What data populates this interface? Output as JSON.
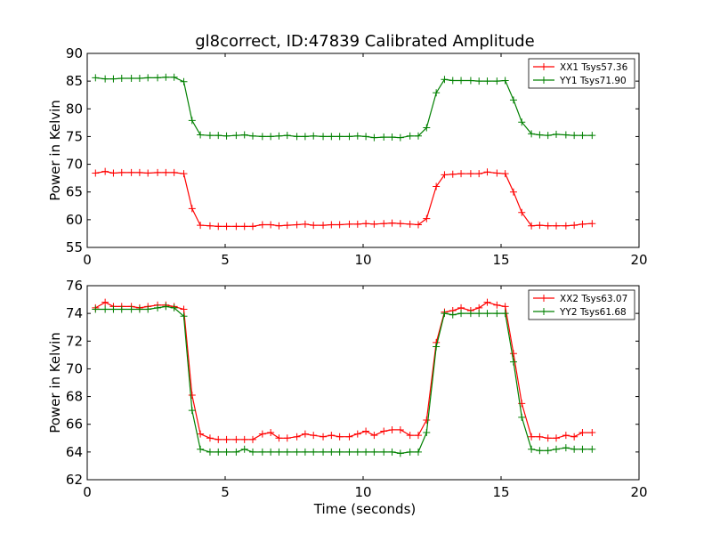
{
  "title": "gl8correct, ID:47839 Calibrated Amplitude",
  "chart_data": [
    {
      "type": "line",
      "title": "gl8correct, ID:47839 Calibrated Amplitude",
      "xlabel": "",
      "ylabel": "Power in Kelvin",
      "xlim": [
        0,
        20
      ],
      "ylim": [
        55,
        90
      ],
      "xticks": [
        "0",
        "5",
        "10",
        "15",
        "20"
      ],
      "yticks": [
        "55",
        "60",
        "65",
        "70",
        "75",
        "80",
        "85",
        "90"
      ],
      "grid": false,
      "legend_position": "top-right",
      "marker": "+",
      "x": [
        0.3,
        0.65,
        0.95,
        1.25,
        1.6,
        1.9,
        2.2,
        2.55,
        2.85,
        3.15,
        3.5,
        3.8,
        4.1,
        4.45,
        4.75,
        5.05,
        5.4,
        5.7,
        6.0,
        6.35,
        6.65,
        6.95,
        7.25,
        7.6,
        7.9,
        8.2,
        8.55,
        8.85,
        9.15,
        9.5,
        9.8,
        10.1,
        10.4,
        10.75,
        11.05,
        11.35,
        11.7,
        12.0,
        12.3,
        12.65,
        12.95,
        13.25,
        13.55,
        13.9,
        14.2,
        14.5,
        14.85,
        15.15,
        15.45,
        15.75,
        16.1,
        16.4,
        16.7,
        17.0,
        17.35,
        17.65,
        17.95,
        18.3
      ],
      "series": [
        {
          "name": "XX1 Tsys57.36",
          "color": "#ff0000",
          "values": [
            68.4,
            68.7,
            68.4,
            68.5,
            68.5,
            68.5,
            68.4,
            68.5,
            68.5,
            68.5,
            68.3,
            62.0,
            59.0,
            58.9,
            58.8,
            58.8,
            58.8,
            58.8,
            58.8,
            59.1,
            59.1,
            58.9,
            59.0,
            59.1,
            59.2,
            59.0,
            59.0,
            59.1,
            59.1,
            59.2,
            59.2,
            59.3,
            59.2,
            59.3,
            59.4,
            59.3,
            59.2,
            59.1,
            60.2,
            66.0,
            68.1,
            68.2,
            68.3,
            68.3,
            68.3,
            68.6,
            68.4,
            68.3,
            65.0,
            61.3,
            58.9,
            59.0,
            58.9,
            58.9,
            58.9,
            59.0,
            59.2,
            59.3
          ]
        },
        {
          "name": "YY1 Tsys71.90",
          "color": "#008000",
          "values": [
            85.6,
            85.4,
            85.4,
            85.5,
            85.5,
            85.5,
            85.6,
            85.6,
            85.7,
            85.7,
            84.9,
            77.9,
            75.3,
            75.2,
            75.2,
            75.1,
            75.2,
            75.3,
            75.1,
            75.0,
            75.0,
            75.1,
            75.2,
            75.0,
            75.0,
            75.1,
            75.0,
            75.0,
            75.0,
            75.0,
            75.1,
            75.0,
            74.8,
            74.9,
            74.9,
            74.8,
            75.1,
            75.1,
            76.6,
            82.9,
            85.3,
            85.1,
            85.1,
            85.1,
            85.0,
            85.0,
            85.0,
            85.1,
            81.6,
            77.6,
            75.5,
            75.3,
            75.2,
            75.4,
            75.3,
            75.2,
            75.2,
            75.2
          ]
        }
      ]
    },
    {
      "type": "line",
      "title": "",
      "xlabel": "Time (seconds)",
      "ylabel": "Power in Kelvin",
      "xlim": [
        0,
        20
      ],
      "ylim": [
        62,
        76
      ],
      "xticks": [
        "0",
        "5",
        "10",
        "15",
        "20"
      ],
      "yticks": [
        "62",
        "64",
        "66",
        "68",
        "70",
        "72",
        "74",
        "76"
      ],
      "grid": false,
      "legend_position": "top-right",
      "marker": "+",
      "x": [
        0.3,
        0.65,
        0.95,
        1.25,
        1.6,
        1.9,
        2.2,
        2.55,
        2.85,
        3.15,
        3.5,
        3.8,
        4.1,
        4.45,
        4.75,
        5.05,
        5.4,
        5.7,
        6.0,
        6.35,
        6.65,
        6.95,
        7.25,
        7.6,
        7.9,
        8.2,
        8.55,
        8.85,
        9.15,
        9.5,
        9.8,
        10.1,
        10.4,
        10.75,
        11.05,
        11.35,
        11.7,
        12.0,
        12.3,
        12.65,
        12.95,
        13.25,
        13.55,
        13.9,
        14.2,
        14.5,
        14.85,
        15.15,
        15.45,
        15.75,
        16.1,
        16.4,
        16.7,
        17.0,
        17.35,
        17.65,
        17.95,
        18.3
      ],
      "series": [
        {
          "name": "XX2 Tsys63.07",
          "color": "#ff0000",
          "values": [
            74.4,
            74.8,
            74.5,
            74.5,
            74.5,
            74.4,
            74.5,
            74.6,
            74.6,
            74.5,
            74.3,
            68.1,
            65.3,
            65.0,
            64.9,
            64.9,
            64.9,
            64.9,
            64.9,
            65.3,
            65.4,
            65.0,
            65.0,
            65.1,
            65.3,
            65.2,
            65.1,
            65.2,
            65.1,
            65.1,
            65.3,
            65.5,
            65.2,
            65.5,
            65.6,
            65.6,
            65.2,
            65.2,
            66.3,
            71.9,
            74.1,
            74.2,
            74.4,
            74.2,
            74.4,
            74.8,
            74.6,
            74.5,
            71.1,
            67.5,
            65.1,
            65.1,
            65.0,
            65.0,
            65.2,
            65.1,
            65.4,
            65.4
          ]
        },
        {
          "name": "YY2 Tsys61.68",
          "color": "#008000",
          "values": [
            74.3,
            74.3,
            74.3,
            74.3,
            74.3,
            74.3,
            74.3,
            74.4,
            74.5,
            74.4,
            73.8,
            67.0,
            64.2,
            64.0,
            64.0,
            64.0,
            64.0,
            64.2,
            64.0,
            64.0,
            64.0,
            64.0,
            64.0,
            64.0,
            64.0,
            64.0,
            64.0,
            64.0,
            64.0,
            64.0,
            64.0,
            64.0,
            64.0,
            64.0,
            64.0,
            63.9,
            64.0,
            64.0,
            65.4,
            71.6,
            74.0,
            73.9,
            74.0,
            74.0,
            74.0,
            74.0,
            74.0,
            74.0,
            70.5,
            66.5,
            64.2,
            64.1,
            64.1,
            64.2,
            64.3,
            64.2,
            64.2,
            64.2
          ]
        }
      ]
    }
  ]
}
